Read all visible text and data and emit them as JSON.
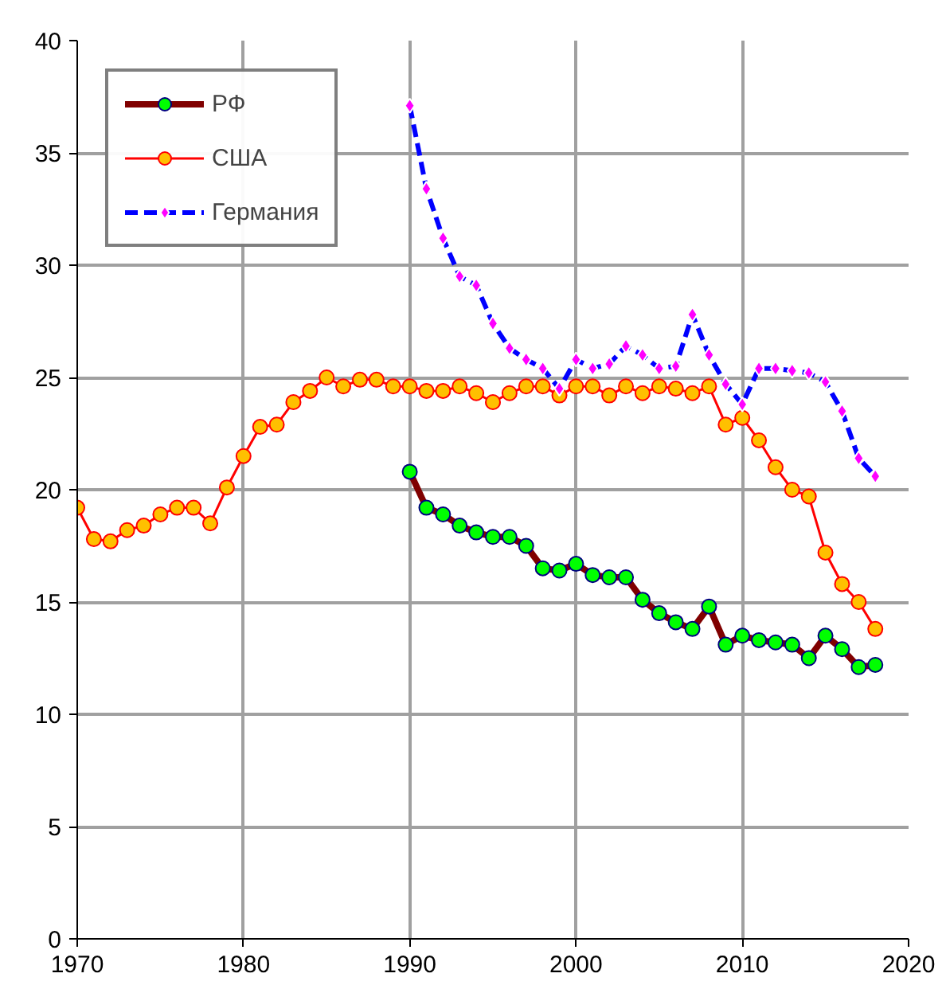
{
  "chart_data": {
    "type": "line",
    "xlim": [
      1970,
      2020
    ],
    "ylim": [
      0,
      40
    ],
    "xticks": [
      1970,
      1980,
      1990,
      2000,
      2010,
      2020
    ],
    "yticks": [
      0,
      5,
      10,
      15,
      20,
      25,
      30,
      35,
      40
    ],
    "grid": true,
    "legend": "top left",
    "series": [
      {
        "name": "РФ",
        "color": "#800000",
        "marker": "circle",
        "line_style": "solid",
        "x": [
          1990,
          1991,
          1992,
          1993,
          1994,
          1995,
          1996,
          1997,
          1998,
          1999,
          2000,
          2001,
          2002,
          2003,
          2004,
          2005,
          2006,
          2007,
          2008,
          2009,
          2010,
          2011,
          2012,
          2013,
          2014,
          2015,
          2016,
          2017,
          2018
        ],
        "values": [
          20.8,
          19.2,
          18.9,
          18.4,
          18.1,
          17.9,
          17.9,
          17.5,
          16.5,
          16.4,
          16.7,
          16.2,
          16.1,
          16.1,
          15.1,
          14.5,
          14.1,
          13.8,
          14.8,
          13.1,
          13.5,
          13.3,
          13.2,
          13.1,
          12.5,
          13.5,
          12.9,
          12.1,
          12.2
        ]
      },
      {
        "name": "США",
        "color": "#ff0000",
        "marker": "circle",
        "line_style": "solid",
        "x": [
          1970,
          1971,
          1972,
          1973,
          1974,
          1975,
          1976,
          1977,
          1978,
          1979,
          1980,
          1981,
          1982,
          1983,
          1984,
          1985,
          1986,
          1987,
          1988,
          1989,
          1990,
          1991,
          1992,
          1993,
          1994,
          1995,
          1996,
          1997,
          1998,
          1999,
          2000,
          2001,
          2002,
          2003,
          2004,
          2005,
          2006,
          2007,
          2008,
          2009,
          2010,
          2011,
          2012,
          2013,
          2014,
          2015,
          2016,
          2017,
          2018
        ],
        "values": [
          19.2,
          17.8,
          17.7,
          18.2,
          18.4,
          18.9,
          19.2,
          19.2,
          18.5,
          20.1,
          21.5,
          22.8,
          22.9,
          23.9,
          24.4,
          25.0,
          24.6,
          24.9,
          24.9,
          24.6,
          24.6,
          24.4,
          24.4,
          24.6,
          24.3,
          23.9,
          24.3,
          24.6,
          24.6,
          24.2,
          24.6,
          24.6,
          24.2,
          24.6,
          24.3,
          24.6,
          24.5,
          24.3,
          24.6,
          22.9,
          23.2,
          22.2,
          21.0,
          20.0,
          19.7,
          17.2,
          15.8,
          15.0,
          13.8
        ]
      },
      {
        "name": "Германия",
        "color": "#0000ff",
        "marker": "diamond",
        "line_style": "dashed",
        "x": [
          1990,
          1991,
          1992,
          1993,
          1994,
          1995,
          1996,
          1997,
          1998,
          1999,
          2000,
          2001,
          2002,
          2003,
          2004,
          2005,
          2006,
          2007,
          2008,
          2009,
          2010,
          2011,
          2012,
          2013,
          2014,
          2015,
          2016,
          2017,
          2018
        ],
        "values": [
          37.1,
          33.4,
          31.2,
          29.5,
          29.1,
          27.4,
          26.3,
          25.8,
          25.4,
          24.5,
          25.8,
          25.4,
          25.6,
          26.4,
          26.0,
          25.4,
          25.5,
          27.8,
          26.0,
          24.7,
          23.8,
          25.4,
          25.4,
          25.3,
          25.2,
          24.8,
          23.5,
          21.4,
          20.6
        ]
      }
    ]
  }
}
